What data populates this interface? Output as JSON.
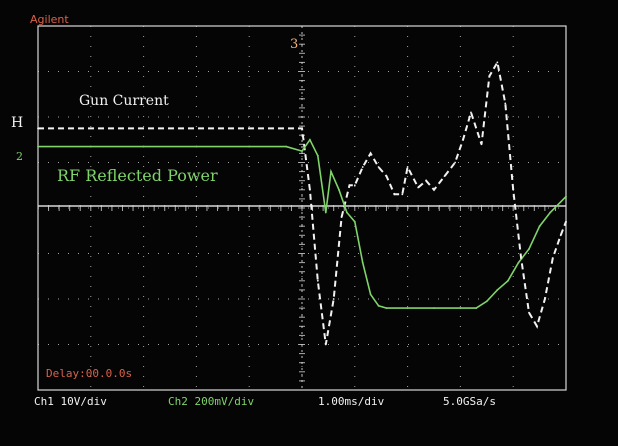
{
  "instrument": {
    "brand": "Agilent"
  },
  "colors": {
    "background": "#050505",
    "graticule": "#d8d8d8",
    "channel1": "#f2f2f2",
    "channel2": "#7fd46a",
    "brand": "#d9614a",
    "marker3": "#f0b27a",
    "delay": "#d9614a"
  },
  "markers": {
    "ch1_marker": "H",
    "ch2_marker": "2",
    "trigger_marker": "3"
  },
  "annotations": {
    "gun_current": "Gun Current",
    "rf_reflected": "RF Reflected Power"
  },
  "status": {
    "delay": "Delay:00.0.0s",
    "ch1": "Ch1  10V/div",
    "ch2": "Ch2 200mV/div",
    "timebase": "1.00ms/div",
    "sample_rate": "5.0GSa/s"
  },
  "chart_data": {
    "type": "line",
    "title": "",
    "xlabel": "",
    "ylabel": "",
    "grid": true,
    "xdivisions": 10,
    "ydivisions": 8,
    "xlim": [
      0,
      10
    ],
    "ylim": [
      -4,
      4
    ],
    "series": [
      {
        "name": "Gun Current",
        "color": "#f2f2f2",
        "style": "dashed",
        "x": [
          0,
          3.3,
          5.0,
          5.15,
          5.3,
          5.45,
          5.6,
          5.75,
          5.9,
          6.0,
          6.15,
          6.3,
          6.45,
          6.6,
          6.75,
          6.9,
          7.0,
          7.2,
          7.35,
          7.5,
          7.7,
          7.9,
          8.05,
          8.2,
          8.4,
          8.55,
          8.7,
          8.85,
          9.0,
          9.15,
          9.3,
          9.45,
          9.6,
          9.75,
          9.9,
          10.0
        ],
        "y": [
          1.75,
          1.75,
          1.75,
          0.4,
          -1.6,
          -3.0,
          -2.0,
          -0.2,
          0.5,
          0.5,
          0.9,
          1.2,
          0.9,
          0.7,
          0.3,
          0.3,
          0.9,
          0.45,
          0.6,
          0.4,
          0.7,
          1.0,
          1.5,
          2.1,
          1.4,
          2.9,
          3.2,
          2.3,
          0.4,
          -1.1,
          -2.3,
          -2.6,
          -2.0,
          -1.1,
          -0.6,
          -0.3
        ]
      },
      {
        "name": "RF Reflected Power",
        "color": "#7fd46a",
        "style": "solid",
        "x": [
          0,
          1.0,
          2.0,
          3.0,
          4.0,
          4.7,
          5.0,
          5.15,
          5.3,
          5.45,
          5.55,
          5.7,
          5.85,
          6.0,
          6.15,
          6.3,
          6.45,
          6.6,
          7.0,
          7.5,
          8.0,
          8.3,
          8.5,
          8.7,
          8.9,
          9.1,
          9.3,
          9.5,
          9.7,
          10.0
        ],
        "y": [
          1.35,
          1.35,
          1.35,
          1.35,
          1.35,
          1.35,
          1.25,
          1.5,
          1.15,
          -0.1,
          0.8,
          0.4,
          -0.1,
          -0.3,
          -1.2,
          -1.9,
          -2.15,
          -2.2,
          -2.2,
          -2.2,
          -2.2,
          -2.2,
          -2.05,
          -1.8,
          -1.6,
          -1.2,
          -0.9,
          -0.4,
          -0.1,
          0.25
        ]
      }
    ]
  }
}
